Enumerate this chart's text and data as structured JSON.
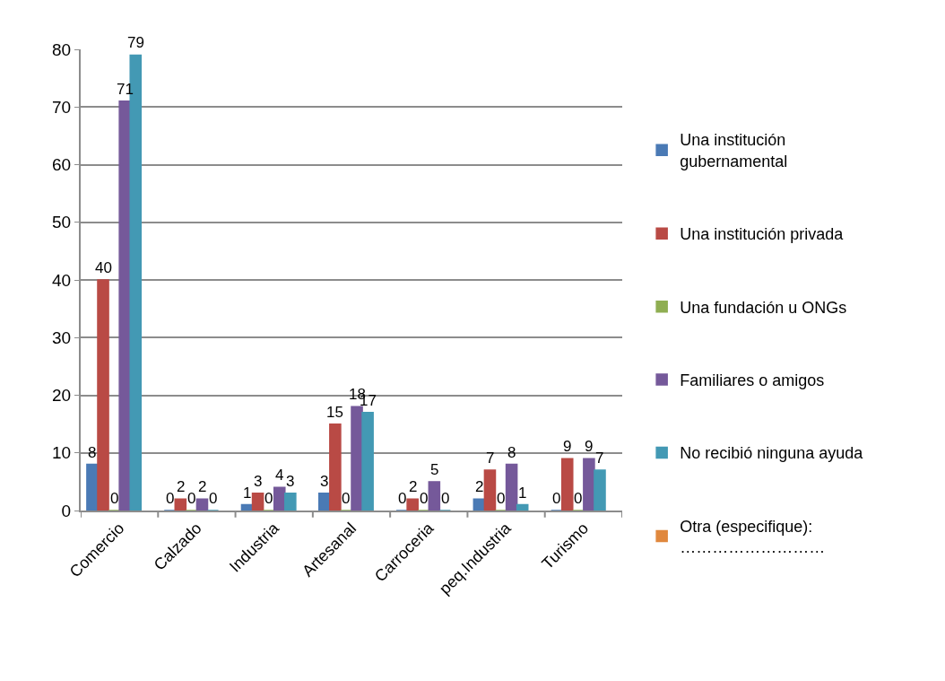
{
  "chart_data": {
    "type": "bar",
    "categories": [
      "Comercio",
      "Calzado",
      "Industria",
      "Artesanal",
      "Carroceria",
      "peq.Industria",
      "Turismo"
    ],
    "series": [
      {
        "name": "Una institución gubernamental",
        "color": "#4a7ab5",
        "values": [
          8,
          0,
          1,
          3,
          0,
          2,
          0
        ]
      },
      {
        "name": "Una institución privada",
        "color": "#b94a45",
        "values": [
          40,
          2,
          3,
          15,
          2,
          7,
          9
        ]
      },
      {
        "name": "Una fundación u ONGs",
        "color": "#8fae52",
        "values": [
          0,
          0,
          0,
          0,
          0,
          0,
          0
        ]
      },
      {
        "name": "Familiares o amigos",
        "color": "#75599a",
        "values": [
          71,
          2,
          4,
          18,
          5,
          8,
          9
        ]
      },
      {
        "name": "No recibió ninguna ayuda",
        "color": "#4399b4",
        "values": [
          79,
          0,
          3,
          17,
          0,
          1,
          7
        ]
      },
      {
        "name": "Otra (especifique): ………………………",
        "color": "#e0883e",
        "values": [
          null,
          null,
          null,
          null,
          null,
          null,
          null
        ]
      }
    ],
    "ylim": [
      0,
      80
    ],
    "yticks": [
      0,
      10,
      20,
      30,
      40,
      50,
      60,
      70,
      80
    ],
    "grid": "y",
    "legend": "right",
    "data_labels": true
  }
}
